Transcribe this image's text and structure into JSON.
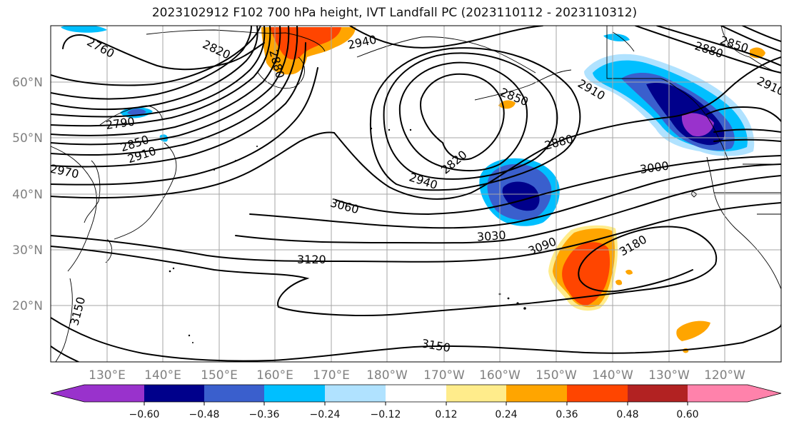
{
  "title": "2023102912 F102 700 hPa height, IVT Landfall PC (2023110112 - 2023110312)",
  "latitude_labels": [
    "60°N",
    "50°N",
    "40°N",
    "30°N",
    "20°N"
  ],
  "longitude_labels": [
    "130°E",
    "140°E",
    "150°E",
    "160°E",
    "170°E",
    "180°W",
    "170°W",
    "160°W",
    "150°W",
    "140°W",
    "130°W",
    "120°W"
  ],
  "colorbar": {
    "colors": [
      "#9932cc",
      "#00008b",
      "#3a5fcd",
      "#00bfff",
      "#b0e2ff",
      "#ffffff",
      "#ffec8b",
      "#ffa500",
      "#ff4500",
      "#b22222",
      "#ff82ab"
    ],
    "tick_labels": [
      "−0.60",
      "−0.48",
      "−0.36",
      "−0.24",
      "−0.12",
      "0.12",
      "0.24",
      "0.36",
      "0.48",
      "0.60"
    ]
  },
  "contour_labels": [
    "2760",
    "2820",
    "2880",
    "2940",
    "2790",
    "2850",
    "2910",
    "2970",
    "2850",
    "2910",
    "2820",
    "2880",
    "2940",
    "2880",
    "2850",
    "2910",
    "3000",
    "3060",
    "3030",
    "3090",
    "3120",
    "3180",
    "3150",
    "3150"
  ]
}
